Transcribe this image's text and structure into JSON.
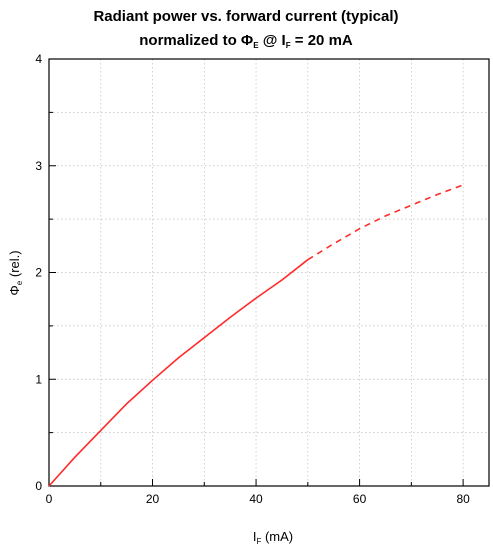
{
  "chart_data": {
    "type": "line",
    "title": {
      "line1": "Radiant power vs. forward current (typical)",
      "line2_prefix": "normalized to Φ",
      "line2_sub1": "E",
      "line2_mid": " @ I",
      "line2_sub2": "F",
      "line2_suffix": " = 20 mA"
    },
    "xlabel": {
      "main": "I",
      "sub": "F",
      "rest": " (mA)"
    },
    "ylabel": {
      "main": "Φ",
      "sub": "e",
      "rest": " (rel.)"
    },
    "xlim": [
      0,
      85
    ],
    "ylim": [
      0,
      4
    ],
    "x_ticks": [
      0,
      20,
      40,
      60,
      80
    ],
    "y_ticks": [
      0,
      1,
      2,
      3,
      4
    ],
    "grid": true,
    "series": [
      {
        "style": "solid",
        "color": "#ff2a2a",
        "x": [
          0,
          5,
          10,
          15,
          20,
          25,
          30,
          35,
          40,
          45,
          50
        ],
        "y": [
          0,
          0.27,
          0.52,
          0.77,
          0.99,
          1.2,
          1.39,
          1.58,
          1.76,
          1.93,
          2.12
        ]
      },
      {
        "style": "dashed",
        "color": "#ff2a2a",
        "x": [
          50,
          55,
          60,
          65,
          70,
          75,
          80
        ],
        "y": [
          2.12,
          2.27,
          2.41,
          2.53,
          2.63,
          2.73,
          2.82
        ]
      }
    ]
  }
}
